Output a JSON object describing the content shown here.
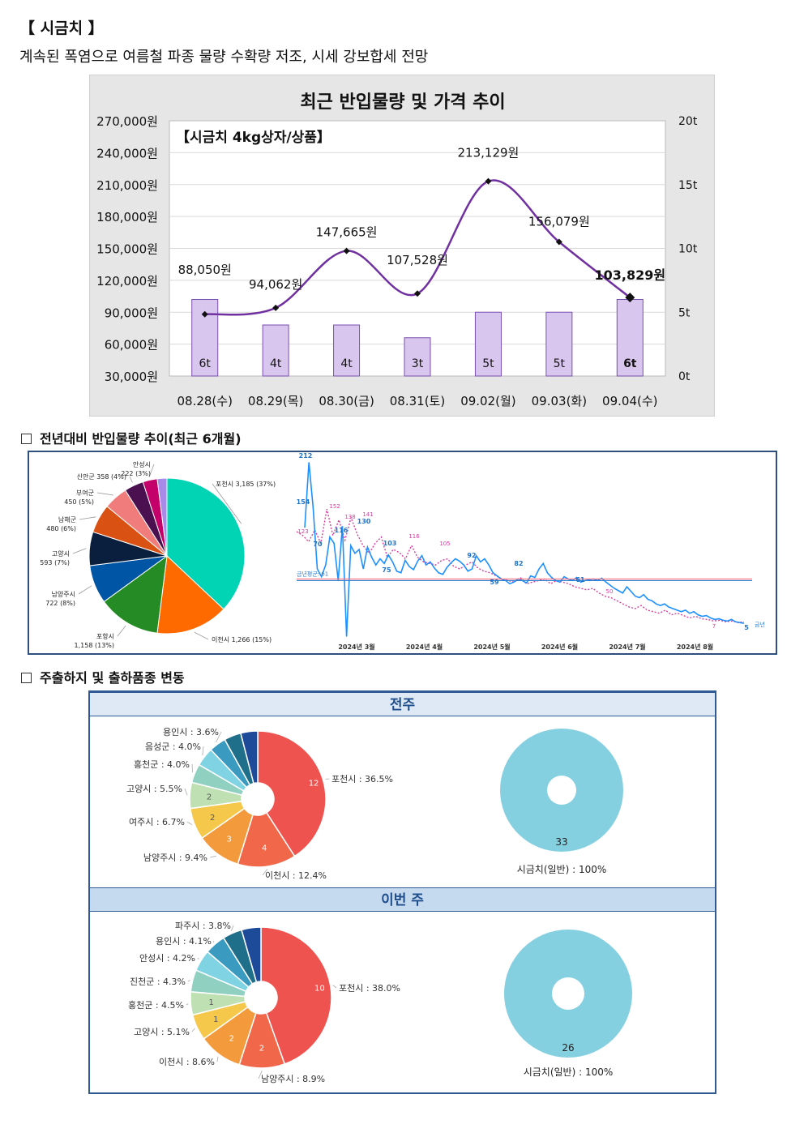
{
  "header": {
    "title": "【 시금치 】",
    "subtitle": "계속된 폭염으로 여름철 파종 물량 수확량 저조, 시세 강보합세 전망"
  },
  "price_chart": {
    "title": "최근 반입물량 및 가격 추이",
    "product_label": "【시금치 4kg상자/상품】",
    "left_axis_ticks": [
      "270,000원",
      "240,000원",
      "210,000원",
      "180,000원",
      "150,000원",
      "120,000원",
      "90,000원",
      "60,000원",
      "30,000원"
    ],
    "right_axis_ticks": [
      "20t",
      "15t",
      "10t",
      "5t",
      "0t"
    ],
    "colors": {
      "bar": "#d9c6ee",
      "bar_border": "#7a4fb0",
      "line": "#7030a0",
      "marker": "#111111"
    }
  },
  "chart_data": [
    {
      "type": "bar+line",
      "title": "최근 반입물량 및 가격 추이",
      "categories": [
        "08.28(수)",
        "08.29(목)",
        "08.30(금)",
        "08.31(토)",
        "09.02(월)",
        "09.03(화)",
        "09.04(수)"
      ],
      "price_labels": [
        "88,050원",
        "94,062원",
        "147,665원",
        "107,528원",
        "213,129원",
        "156,079원",
        "103,829원"
      ],
      "volume_labels": [
        "6t",
        "4t",
        "4t",
        "3t",
        "5t",
        "5t",
        "6t"
      ],
      "series": [
        {
          "name": "price",
          "values": [
            88050,
            94062,
            147665,
            107528,
            213129,
            156079,
            103829
          ]
        },
        {
          "name": "volume",
          "values": [
            6,
            4,
            4,
            3,
            5,
            5,
            6
          ]
        }
      ],
      "price_lim": [
        30000,
        270000
      ],
      "volume_lim": [
        0,
        20
      ]
    },
    {
      "type": "pie",
      "slices": [
        {
          "label": "포천시 3,185 (37%)",
          "value": 37,
          "color": "#00d4b4"
        },
        {
          "label": "이천시 1,266 (15%)",
          "value": 15,
          "color": "#ff6a00"
        },
        {
          "label": "포항시 1,158 (13%)",
          "value": 13,
          "color": "#258b25"
        },
        {
          "label": "남양주시 722 (8%)",
          "value": 8,
          "color": "#0055a5"
        },
        {
          "label": "고양시 593 (7%)",
          "value": 7,
          "color": "#0a1e3d"
        },
        {
          "label": "남해군 480 (6%)",
          "value": 6,
          "color": "#d95214"
        },
        {
          "label": "부여군 450 (5%)",
          "value": 5,
          "color": "#f07c7c"
        },
        {
          "label": "신안군 358 (4%)",
          "value": 4,
          "color": "#4a1050"
        },
        {
          "label": "안성시 222 (3%)",
          "value": 3,
          "color": "#c4006a"
        },
        {
          "label": "",
          "value": 2,
          "color": "#a88be8"
        }
      ]
    },
    {
      "type": "line",
      "x_labels": [
        "2024년 3월",
        "2024년 4월",
        "2024년 5월",
        "2024년 6월",
        "2024년 7월",
        "2024년 8월"
      ],
      "value_labels_current": [
        "212",
        "154",
        "70",
        "116",
        "130",
        "103",
        "75",
        "92",
        "59",
        "82",
        "61",
        "5"
      ],
      "value_labels_previous": [
        "123",
        "152",
        "138",
        "141",
        "116",
        "105",
        "50",
        "7"
      ],
      "average_label": "금년평균: 61",
      "current_label": "금년"
    },
    {
      "type": "pie",
      "title": "전주",
      "slices": [
        {
          "label": "포천시 : 36.5%",
          "value": 36.5,
          "inner": "12",
          "color": "#ef5350"
        },
        {
          "label": "이천시 : 12.4%",
          "value": 12.4,
          "inner": "4",
          "color": "#f0674a"
        },
        {
          "label": "남양주시 : 9.4%",
          "value": 9.4,
          "inner": "3",
          "color": "#f39a3c"
        },
        {
          "label": "여주시 : 6.7%",
          "value": 6.7,
          "inner": "2",
          "color": "#f5c84b"
        },
        {
          "label": "고양시 : 5.5%",
          "value": 5.5,
          "inner": "2",
          "color": "#bfe0b3"
        },
        {
          "label": "홍천군 : 4.0%",
          "value": 4.0,
          "inner": "",
          "color": "#8fd0c0"
        },
        {
          "label": "음성군 : 4.0%",
          "value": 4.0,
          "inner": "",
          "color": "#7fd3e3"
        },
        {
          "label": "용인시 : 3.6%",
          "value": 3.6,
          "inner": "",
          "color": "#3a9ac0"
        },
        {
          "label": "",
          "value": 3.6,
          "inner": "",
          "color": "#1f6f8a"
        },
        {
          "label": "",
          "value": 3.6,
          "inner": "",
          "color": "#1e4a9a"
        }
      ],
      "donut": {
        "label": "시금치(일반) : 100%",
        "inner": "33",
        "color": "#85d0e0"
      }
    },
    {
      "type": "pie",
      "title": "이번 주",
      "slices": [
        {
          "label": "포천시 : 38.0%",
          "value": 38.0,
          "inner": "10",
          "color": "#ef5350"
        },
        {
          "label": "남양주시 : 8.9%",
          "value": 8.9,
          "inner": "2",
          "color": "#f0674a"
        },
        {
          "label": "이천시 : 8.6%",
          "value": 8.6,
          "inner": "2",
          "color": "#f39a3c"
        },
        {
          "label": "고양시 : 5.1%",
          "value": 5.1,
          "inner": "1",
          "color": "#f5c84b"
        },
        {
          "label": "홍천군 : 4.5%",
          "value": 4.5,
          "inner": "1",
          "color": "#bfe0b3"
        },
        {
          "label": "진천군 : 4.3%",
          "value": 4.3,
          "inner": "",
          "color": "#8fd0c0"
        },
        {
          "label": "안성시 : 4.2%",
          "value": 4.2,
          "inner": "",
          "color": "#7fd3e3"
        },
        {
          "label": "용인시 : 4.1%",
          "value": 4.1,
          "inner": "",
          "color": "#3a9ac0"
        },
        {
          "label": "파주시 : 3.8%",
          "value": 3.8,
          "inner": "",
          "color": "#1f6f8a"
        },
        {
          "label": "",
          "value": 3.8,
          "inner": "",
          "color": "#1e4a9a"
        }
      ],
      "donut": {
        "label": "시금치(일반) : 100%",
        "inner": "26",
        "color": "#85d0e0"
      }
    }
  ],
  "sections": {
    "yoy_title": "전년대비 반입물량 추이(최근 6개월)",
    "shipping_title": "주출하지 및 출하품종 변동",
    "last_week": "전주",
    "this_week": "이번 주"
  }
}
